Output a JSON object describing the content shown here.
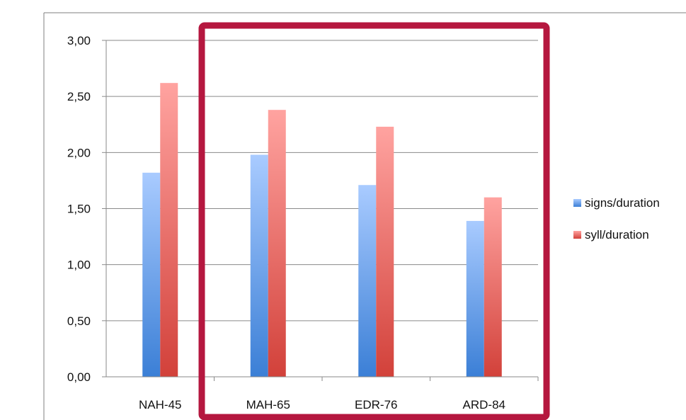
{
  "chart_data": {
    "type": "bar",
    "title": "",
    "xlabel": "",
    "ylabel": "",
    "categories": [
      "NAH-45",
      "MAH-65",
      "EDR-76",
      "ARD-84"
    ],
    "series": [
      {
        "name": "signs/duration",
        "values": [
          1.82,
          1.98,
          1.71,
          1.39
        ]
      },
      {
        "name": "syll/duration",
        "values": [
          2.62,
          2.38,
          2.23,
          1.6
        ]
      }
    ],
    "ylim": [
      0,
      3
    ],
    "yticks": [
      "0,00",
      "0,50",
      "1,00",
      "1,50",
      "2,00",
      "2,50",
      "3,00"
    ],
    "grid": true,
    "legend_position": "right",
    "highlight_box": {
      "around_categories": [
        "MAH-65",
        "EDR-76",
        "ARD-84"
      ],
      "color": "#b5173f"
    },
    "colors": {
      "signs_top": "#a9cbff",
      "signs_bottom": "#3b7fd6",
      "syll_top": "#ffa3a0",
      "syll_bottom": "#d2413a",
      "grid": "#8a8a8a",
      "frame": "#7f7f7f"
    }
  }
}
